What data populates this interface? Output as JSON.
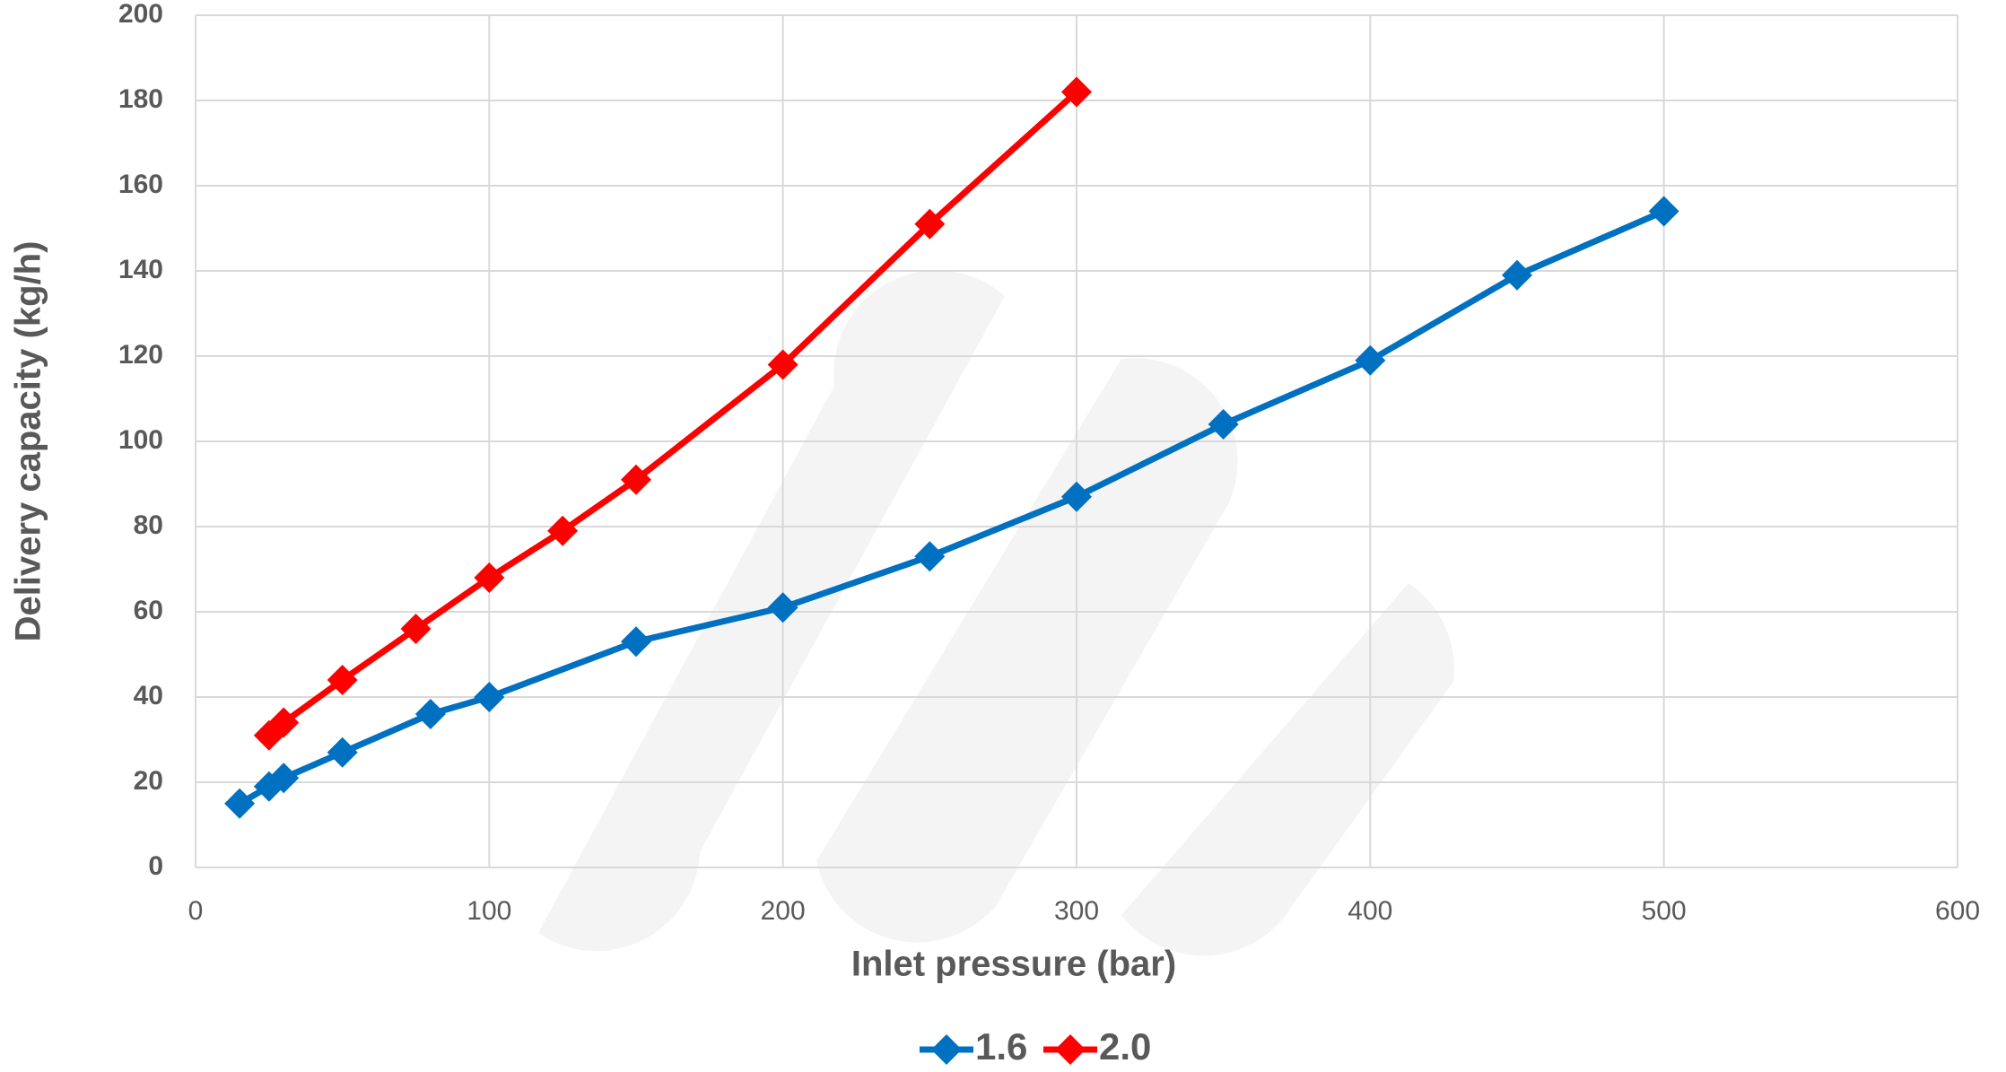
{
  "chart_data": {
    "type": "line",
    "x_label": "Inlet pressure (bar)",
    "y_label": "Delivery capacity (kg/h)",
    "xlim": [
      0,
      600
    ],
    "xticks": [
      0,
      100,
      200,
      300,
      400,
      500,
      600
    ],
    "ylim": [
      0,
      200
    ],
    "yticks": [
      0,
      20,
      40,
      60,
      80,
      100,
      120,
      140,
      160,
      180,
      200
    ],
    "grid": true,
    "legend": "bottom",
    "series": [
      {
        "name": "1.6",
        "color": "#0070c0",
        "x": [
          15,
          25,
          30,
          50,
          80,
          100,
          150,
          200,
          250,
          300,
          350,
          400,
          450,
          500
        ],
        "values": [
          15,
          19,
          21,
          27,
          36,
          40,
          53,
          61,
          73,
          87,
          104,
          119,
          139,
          154
        ]
      },
      {
        "name": "2.0",
        "color": "#ff0000",
        "x": [
          25,
          30,
          50,
          75,
          100,
          125,
          150,
          200,
          250,
          300
        ],
        "values": [
          31,
          34,
          44,
          56,
          68,
          79,
          91,
          118,
          151,
          182
        ]
      }
    ]
  }
}
